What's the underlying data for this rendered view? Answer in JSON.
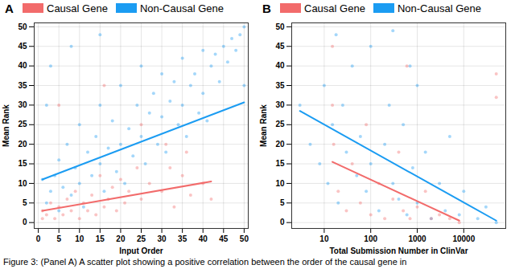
{
  "chart_data": [
    {
      "panel": "A",
      "type": "scatter",
      "xlabel": "Input Order",
      "ylabel": "Mean Rank",
      "xlim": [
        -1,
        51
      ],
      "ylim": [
        -1.5,
        51
      ],
      "xticks": [
        0,
        5,
        10,
        15,
        20,
        25,
        30,
        35,
        40,
        45,
        50
      ],
      "yticks": [
        0,
        5,
        10,
        15,
        20,
        25,
        30,
        35,
        40,
        45,
        50
      ],
      "grid": true,
      "legend": "top",
      "series": [
        {
          "name": "Causal Gene",
          "color": "#F26B6B",
          "x": [
            1,
            1,
            2,
            3,
            4,
            5,
            6,
            7,
            8,
            9,
            10,
            11,
            12,
            13,
            14,
            15,
            16,
            17,
            18,
            19,
            20,
            21,
            22,
            24,
            25,
            27,
            30,
            31,
            32,
            33,
            35,
            36,
            37,
            40,
            42,
            5,
            16,
            25
          ],
          "values": [
            1,
            3,
            2,
            5,
            1,
            4,
            2,
            6,
            3,
            8,
            1,
            5,
            3,
            7,
            2,
            12,
            4,
            6,
            9,
            3,
            11,
            5,
            8,
            14,
            6,
            10,
            8,
            20,
            14,
            4,
            12,
            18,
            7,
            10,
            6,
            30,
            35,
            25
          ],
          "fit": {
            "x": [
              1,
              42
            ],
            "values": [
              3,
              10.5
            ]
          }
        },
        {
          "name": "Non-Causal Gene",
          "color": "#1B9CF2",
          "x": [
            1,
            2,
            3,
            4,
            5,
            5,
            6,
            7,
            8,
            9,
            10,
            10,
            11,
            12,
            13,
            14,
            15,
            15,
            16,
            17,
            18,
            19,
            20,
            20,
            21,
            22,
            23,
            24,
            25,
            25,
            26,
            27,
            28,
            29,
            30,
            30,
            31,
            32,
            33,
            34,
            35,
            35,
            36,
            37,
            38,
            39,
            40,
            40,
            41,
            42,
            43,
            44,
            45,
            46,
            47,
            48,
            49,
            50,
            50,
            3,
            8,
            15,
            2
          ],
          "values": [
            11,
            5,
            8,
            12,
            3,
            16,
            9,
            20,
            7,
            14,
            10,
            25,
            4,
            18,
            12,
            22,
            15,
            30,
            8,
            19,
            26,
            13,
            20,
            35,
            10,
            24,
            17,
            30,
            22,
            40,
            15,
            28,
            33,
            20,
            27,
            38,
            18,
            31,
            36,
            25,
            30,
            42,
            22,
            35,
            38,
            28,
            33,
            44,
            26,
            40,
            43,
            36,
            45,
            41,
            47,
            44,
            48,
            50,
            35,
            40,
            45,
            48,
            30
          ],
          "fit": {
            "x": [
              1,
              50
            ],
            "values": [
              11,
              30.7
            ]
          }
        }
      ]
    },
    {
      "panel": "B",
      "type": "scatter",
      "xlabel": "Total Submission Number in ClinVar",
      "ylabel": "Mean Rank",
      "log": "x",
      "xlim": [
        2,
        80000
      ],
      "ylim": [
        -1.5,
        51
      ],
      "xticks": [
        10,
        100,
        1000,
        10000
      ],
      "yticks": [
        0,
        5,
        10,
        15,
        20,
        25,
        30,
        35,
        40,
        45,
        50
      ],
      "grid": true,
      "legend": "top",
      "series": [
        {
          "name": "Causal Gene",
          "color": "#F26B6B",
          "x": [
            15,
            15,
            20,
            30,
            40,
            60,
            80,
            100,
            150,
            200,
            300,
            400,
            500,
            700,
            1000,
            1500,
            2000,
            3000,
            5000,
            8000,
            50000,
            50000,
            600,
            16
          ],
          "values": [
            30,
            45,
            8,
            3,
            15,
            5,
            25,
            2,
            10,
            1,
            6,
            18,
            3,
            1,
            4,
            8,
            1,
            2,
            1,
            0,
            32,
            38,
            40,
            20
          ],
          "fit": {
            "x": [
              15,
              8000
            ],
            "values": [
              15.5,
              0.5
            ]
          }
        },
        {
          "name": "Non-Causal Gene",
          "color": "#1B9CF2",
          "x": [
            3,
            5,
            8,
            10,
            12,
            15,
            20,
            25,
            30,
            40,
            50,
            60,
            80,
            100,
            100,
            150,
            200,
            250,
            300,
            400,
            500,
            600,
            800,
            1000,
            1000,
            1500,
            2000,
            3000,
            4000,
            5000,
            8000,
            10000,
            20000,
            30000,
            50000,
            18,
            300,
            700
          ],
          "values": [
            30,
            20,
            15,
            35,
            10,
            25,
            5,
            30,
            18,
            40,
            12,
            22,
            8,
            45,
            15,
            3,
            20,
            30,
            10,
            6,
            25,
            2,
            14,
            35,
            5,
            18,
            1,
            10,
            3,
            22,
            2,
            8,
            1,
            4,
            0,
            48,
            49,
            40
          ],
          "fit": {
            "x": [
              3,
              50000
            ],
            "values": [
              28.5,
              0.5
            ]
          }
        }
      ]
    }
  ],
  "caption": "Figure 3: (Panel A) A scatter plot showing a positive correlation between the order of the causal gene in"
}
